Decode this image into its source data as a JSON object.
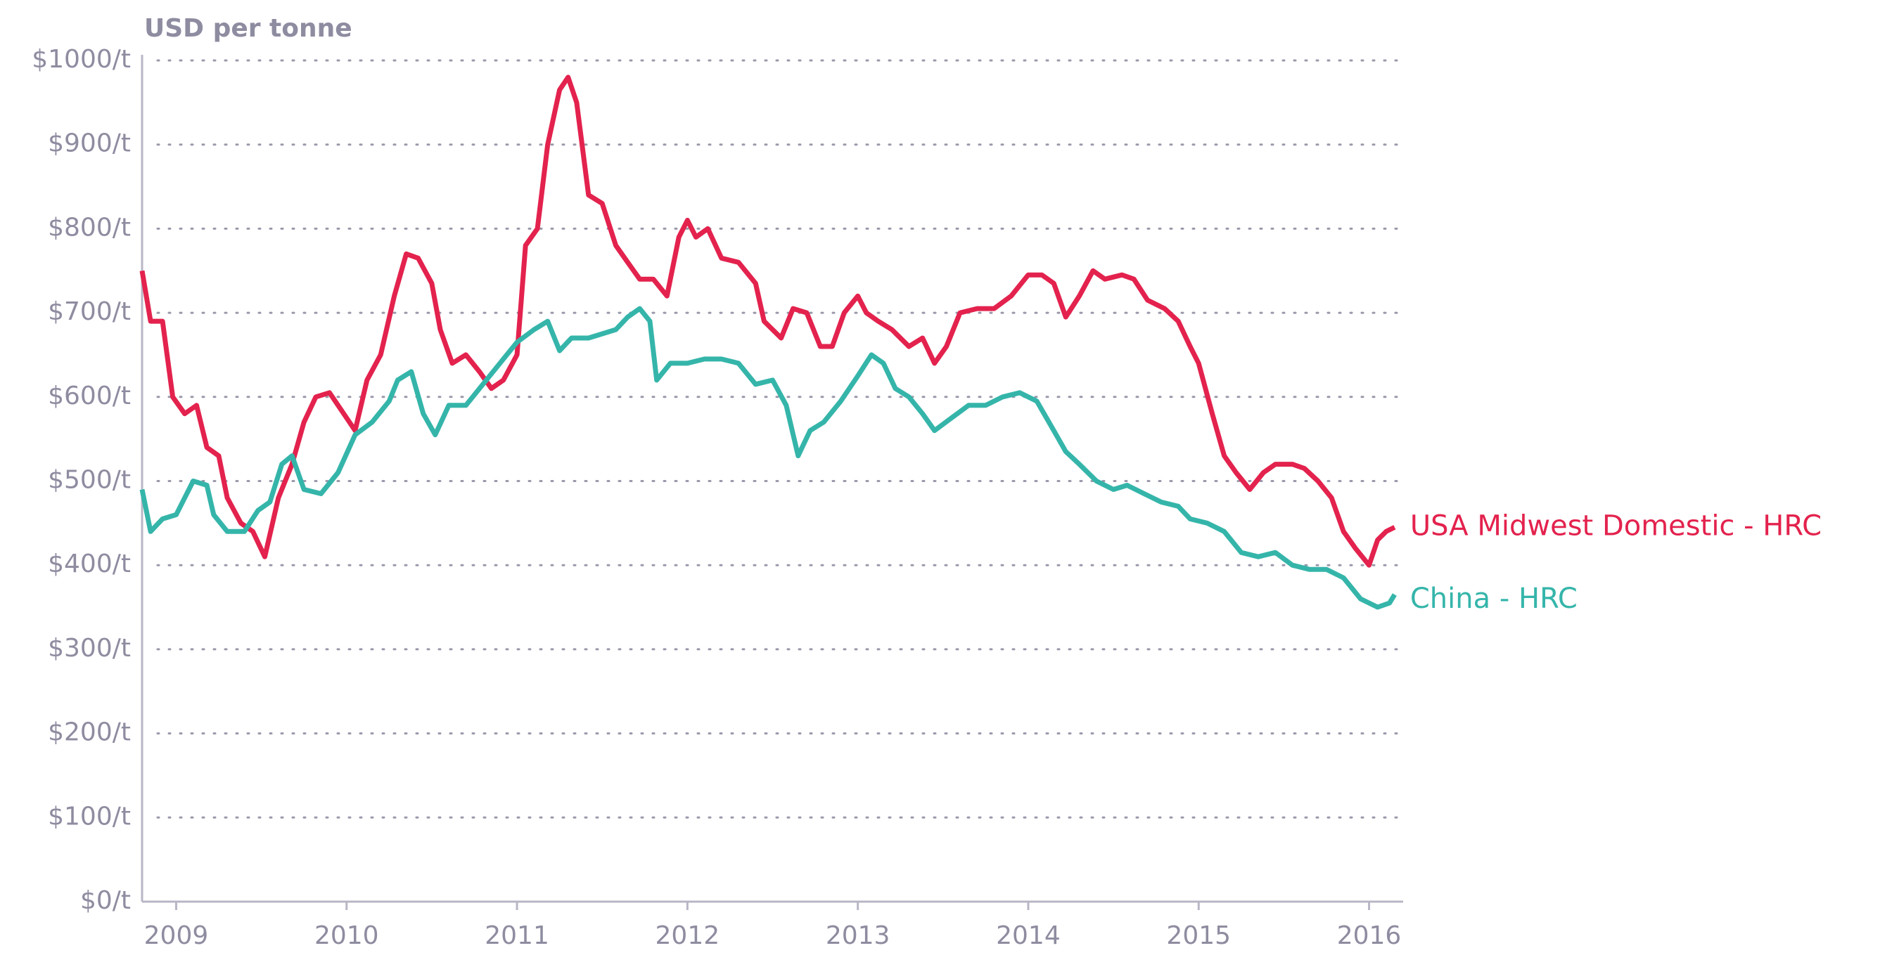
{
  "chart_data": {
    "type": "line",
    "y_label": "USD per tonne",
    "xlim": [
      2008.8,
      2016.2
    ],
    "xticks": [
      2009,
      2010,
      2011,
      2012,
      2013,
      2014,
      2015,
      2016
    ],
    "ylim": [
      0,
      1000
    ],
    "yticks": [
      {
        "value": 0,
        "label": "$0/t"
      },
      {
        "value": 100,
        "label": "$100/t"
      },
      {
        "value": 200,
        "label": "$200/t"
      },
      {
        "value": 300,
        "label": "$300/t"
      },
      {
        "value": 400,
        "label": "$400/t"
      },
      {
        "value": 500,
        "label": "$500/t"
      },
      {
        "value": 600,
        "label": "$600/t"
      },
      {
        "value": 700,
        "label": "$700/t"
      },
      {
        "value": 800,
        "label": "$800/t"
      },
      {
        "value": 900,
        "label": "$900/t"
      },
      {
        "value": 1000,
        "label": "$1000/t"
      }
    ],
    "grid": true,
    "series": [
      {
        "name": "USA Midwest Domestic - HRC",
        "color": "#e3224d",
        "x": [
          2008.8,
          2008.85,
          2008.92,
          2008.98,
          2009.05,
          2009.12,
          2009.18,
          2009.25,
          2009.3,
          2009.38,
          2009.45,
          2009.52,
          2009.6,
          2009.68,
          2009.75,
          2009.82,
          2009.9,
          2010.0,
          2010.05,
          2010.12,
          2010.2,
          2010.28,
          2010.35,
          2010.42,
          2010.5,
          2010.55,
          2010.62,
          2010.7,
          2010.78,
          2010.85,
          2010.92,
          2011.0,
          2011.05,
          2011.12,
          2011.18,
          2011.25,
          2011.3,
          2011.35,
          2011.42,
          2011.5,
          2011.58,
          2011.65,
          2011.72,
          2011.8,
          2011.88,
          2011.95,
          2012.0,
          2012.05,
          2012.12,
          2012.2,
          2012.3,
          2012.4,
          2012.45,
          2012.55,
          2012.62,
          2012.7,
          2012.78,
          2012.85,
          2012.92,
          2013.0,
          2013.05,
          2013.12,
          2013.2,
          2013.3,
          2013.38,
          2013.45,
          2013.52,
          2013.6,
          2013.7,
          2013.8,
          2013.9,
          2014.0,
          2014.08,
          2014.15,
          2014.22,
          2014.3,
          2014.38,
          2014.45,
          2014.55,
          2014.62,
          2014.7,
          2014.8,
          2014.88,
          2014.95,
          2015.0,
          2015.08,
          2015.15,
          2015.22,
          2015.3,
          2015.38,
          2015.45,
          2015.55,
          2015.62,
          2015.7,
          2015.78,
          2015.85,
          2015.92,
          2016.0,
          2016.05,
          2016.1,
          2016.15
        ],
        "values": [
          750,
          690,
          690,
          600,
          580,
          590,
          540,
          530,
          480,
          450,
          440,
          410,
          480,
          520,
          570,
          600,
          605,
          575,
          560,
          620,
          650,
          720,
          770,
          765,
          735,
          680,
          640,
          650,
          630,
          610,
          620,
          650,
          780,
          800,
          900,
          965,
          980,
          950,
          840,
          830,
          780,
          760,
          740,
          740,
          720,
          790,
          810,
          790,
          800,
          765,
          760,
          735,
          690,
          670,
          705,
          700,
          660,
          660,
          700,
          720,
          700,
          690,
          680,
          660,
          670,
          640,
          660,
          700,
          705,
          705,
          720,
          745,
          745,
          735,
          695,
          720,
          750,
          740,
          745,
          740,
          715,
          705,
          690,
          660,
          640,
          580,
          530,
          510,
          490,
          510,
          520,
          520,
          515,
          500,
          480,
          440,
          420,
          400,
          430,
          440,
          445
        ]
      },
      {
        "name": "China - HRC",
        "color": "#35b5aa",
        "x": [
          2008.8,
          2008.85,
          2008.92,
          2009.0,
          2009.05,
          2009.1,
          2009.18,
          2009.22,
          2009.3,
          2009.4,
          2009.48,
          2009.55,
          2009.62,
          2009.68,
          2009.75,
          2009.85,
          2009.95,
          2010.05,
          2010.15,
          2010.25,
          2010.3,
          2010.38,
          2010.45,
          2010.52,
          2010.6,
          2010.7,
          2010.8,
          2010.9,
          2011.0,
          2011.1,
          2011.18,
          2011.25,
          2011.32,
          2011.42,
          2011.5,
          2011.58,
          2011.65,
          2011.72,
          2011.78,
          2011.82,
          2011.9,
          2012.0,
          2012.1,
          2012.2,
          2012.3,
          2012.4,
          2012.5,
          2012.58,
          2012.65,
          2012.72,
          2012.8,
          2012.9,
          2013.0,
          2013.08,
          2013.15,
          2013.22,
          2013.3,
          2013.38,
          2013.45,
          2013.55,
          2013.65,
          2013.75,
          2013.85,
          2013.95,
          2014.05,
          2014.15,
          2014.22,
          2014.3,
          2014.4,
          2014.5,
          2014.58,
          2014.68,
          2014.78,
          2014.88,
          2014.95,
          2015.05,
          2015.15,
          2015.25,
          2015.35,
          2015.45,
          2015.55,
          2015.65,
          2015.75,
          2015.85,
          2015.95,
          2016.05,
          2016.12,
          2016.15
        ],
        "values": [
          490,
          440,
          455,
          460,
          480,
          500,
          495,
          460,
          440,
          440,
          465,
          475,
          520,
          530,
          490,
          485,
          510,
          555,
          570,
          595,
          620,
          630,
          580,
          555,
          590,
          590,
          615,
          640,
          665,
          680,
          690,
          655,
          670,
          670,
          675,
          680,
          695,
          705,
          690,
          620,
          640,
          640,
          645,
          645,
          640,
          615,
          620,
          590,
          530,
          560,
          570,
          595,
          625,
          650,
          640,
          610,
          600,
          580,
          560,
          575,
          590,
          590,
          600,
          605,
          595,
          560,
          535,
          520,
          500,
          490,
          495,
          485,
          475,
          470,
          455,
          450,
          440,
          415,
          410,
          415,
          400,
          395,
          395,
          385,
          360,
          350,
          355,
          365
        ]
      }
    ]
  }
}
